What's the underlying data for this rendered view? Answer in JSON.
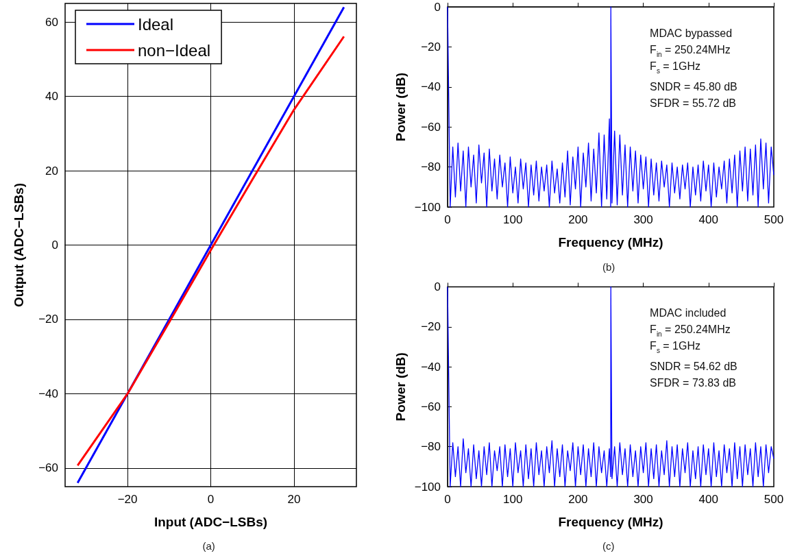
{
  "chart_data": [
    {
      "type": "line",
      "title": "(a)",
      "xlabel": "Input (ADC−LSBs)",
      "ylabel": "Output (ADC−LSBs)",
      "xlim": [
        -35,
        35
      ],
      "ylim": [
        -65,
        65
      ],
      "xticks": [
        -20,
        0,
        20
      ],
      "yticks": [
        -60,
        -40,
        -20,
        0,
        20,
        40,
        60
      ],
      "grid": true,
      "legend": "top left",
      "marker": "none",
      "line_style": "solid",
      "series": [
        {
          "name": "Ideal",
          "color": "#0000ff",
          "x": [
            -32,
            32
          ],
          "values": [
            -64,
            64
          ]
        },
        {
          "name": "non−Ideal",
          "color": "#ff0000",
          "x": [
            -32,
            -20,
            -10,
            0,
            10,
            20,
            32
          ],
          "values": [
            -59.3,
            -40,
            -20.8,
            -1.4,
            17.6,
            36.4,
            56.1
          ]
        }
      ]
    },
    {
      "type": "line",
      "title": "(b)",
      "xlabel": "Frequency (MHz)",
      "ylabel": "Power (dB)",
      "xlim": [
        0,
        500
      ],
      "ylim": [
        -100,
        0
      ],
      "xticks": [
        0,
        100,
        200,
        300,
        400,
        500
      ],
      "yticks": [
        -100,
        -80,
        -60,
        -40,
        -20,
        0
      ],
      "grid": false,
      "legend": false,
      "marker": "none",
      "line_style": "solid",
      "annotations": [
        "MDAC bypassed",
        "F$_{in}$ = 250.24MHz",
        "F$_{s}$ = 1GHz",
        "SNDR = 45.80 dB",
        "SFDR = 55.72 dB"
      ],
      "series": [
        {
          "color": "#0000ff",
          "x": [
            0,
            4,
            8,
            12,
            16,
            20,
            24,
            28,
            32,
            36,
            40,
            44,
            48,
            52,
            56,
            60,
            64,
            68,
            72,
            76,
            80,
            84,
            88,
            92,
            96,
            100,
            104,
            108,
            112,
            116,
            120,
            124,
            128,
            132,
            136,
            140,
            144,
            148,
            152,
            156,
            160,
            164,
            168,
            172,
            176,
            180,
            184,
            188,
            192,
            196,
            200,
            204,
            208,
            212,
            216,
            220,
            224,
            228,
            232,
            236,
            240,
            244,
            248,
            250,
            250.24,
            252,
            256,
            260,
            264,
            268,
            272,
            276,
            280,
            284,
            288,
            292,
            296,
            300,
            304,
            308,
            312,
            316,
            320,
            324,
            328,
            332,
            336,
            340,
            344,
            348,
            352,
            356,
            360,
            364,
            368,
            372,
            376,
            380,
            384,
            388,
            392,
            396,
            400,
            404,
            408,
            412,
            416,
            420,
            424,
            428,
            432,
            436,
            440,
            444,
            448,
            452,
            456,
            460,
            464,
            468,
            472,
            476,
            480,
            484,
            488,
            492,
            496,
            500
          ],
          "values": [
            0,
            -100,
            -70,
            -95,
            -68,
            -92,
            -72,
            -100,
            -70,
            -90,
            -74,
            -98,
            -69,
            -88,
            -73,
            -100,
            -71,
            -92,
            -76,
            -96,
            -74,
            -90,
            -78,
            -100,
            -75,
            -93,
            -80,
            -98,
            -76,
            -91,
            -78,
            -100,
            -79,
            -94,
            -77,
            -97,
            -80,
            -92,
            -79,
            -100,
            -77,
            -93,
            -81,
            -98,
            -78,
            -95,
            -72,
            -99,
            -75,
            -91,
            -70,
            -100,
            -73,
            -90,
            -68,
            -97,
            -71,
            -93,
            -63,
            -100,
            -64,
            -96,
            -56,
            -100,
            0,
            -98,
            -62,
            -99,
            -64,
            -94,
            -69,
            -100,
            -70,
            -92,
            -72,
            -98,
            -74,
            -91,
            -75,
            -100,
            -76,
            -94,
            -78,
            -97,
            -77,
            -90,
            -79,
            -100,
            -78,
            -93,
            -80,
            -96,
            -79,
            -91,
            -78,
            -100,
            -80,
            -94,
            -79,
            -97,
            -77,
            -92,
            -79,
            -100,
            -78,
            -95,
            -80,
            -91,
            -77,
            -98,
            -76,
            -93,
            -74,
            -100,
            -72,
            -92,
            -70,
            -97,
            -71,
            -94,
            -69,
            -100,
            -66,
            -91,
            -68,
            -98,
            -70,
            -84
          ]
        }
      ]
    },
    {
      "type": "line",
      "title": "(c)",
      "xlabel": "Frequency (MHz)",
      "ylabel": "Power (dB)",
      "xlim": [
        0,
        500
      ],
      "ylim": [
        -100,
        0
      ],
      "xticks": [
        0,
        100,
        200,
        300,
        400,
        500
      ],
      "yticks": [
        -100,
        -80,
        -60,
        -40,
        -20,
        0
      ],
      "grid": false,
      "legend": false,
      "marker": "none",
      "line_style": "solid",
      "annotations": [
        "MDAC included",
        "F$_{in}$ = 250.24MHz",
        "F$_{s}$ = 1GHz",
        "SNDR = 54.62 dB",
        "SFDR = 73.83 dB"
      ],
      "series": [
        {
          "color": "#0000ff",
          "x": [
            0,
            4,
            8,
            12,
            16,
            20,
            24,
            28,
            32,
            36,
            40,
            44,
            48,
            52,
            56,
            60,
            64,
            68,
            72,
            76,
            80,
            84,
            88,
            92,
            96,
            100,
            104,
            108,
            112,
            116,
            120,
            124,
            128,
            132,
            136,
            140,
            144,
            148,
            152,
            156,
            160,
            164,
            168,
            172,
            176,
            180,
            184,
            188,
            192,
            196,
            200,
            204,
            208,
            212,
            216,
            220,
            224,
            228,
            232,
            236,
            240,
            244,
            248,
            250,
            250.24,
            252,
            256,
            260,
            264,
            268,
            272,
            276,
            280,
            284,
            288,
            292,
            296,
            300,
            304,
            308,
            312,
            316,
            320,
            324,
            328,
            332,
            336,
            340,
            344,
            348,
            352,
            356,
            360,
            364,
            368,
            372,
            376,
            380,
            384,
            388,
            392,
            396,
            400,
            404,
            408,
            412,
            416,
            420,
            424,
            428,
            432,
            436,
            440,
            444,
            448,
            452,
            456,
            460,
            464,
            468,
            472,
            476,
            480,
            484,
            488,
            492,
            496,
            500
          ],
          "values": [
            0,
            -100,
            -78,
            -95,
            -80,
            -100,
            -76,
            -93,
            -81,
            -100,
            -79,
            -96,
            -82,
            -100,
            -80,
            -94,
            -78,
            -100,
            -82,
            -92,
            -80,
            -100,
            -79,
            -95,
            -81,
            -100,
            -78,
            -93,
            -82,
            -100,
            -79,
            -96,
            -81,
            -100,
            -78,
            -94,
            -82,
            -100,
            -80,
            -93,
            -77,
            -100,
            -81,
            -95,
            -79,
            -100,
            -82,
            -92,
            -78,
            -100,
            -80,
            -94,
            -79,
            -100,
            -81,
            -95,
            -78,
            -100,
            -80,
            -93,
            -82,
            -100,
            -81,
            -95,
            0,
            -96,
            -80,
            -100,
            -78,
            -94,
            -81,
            -100,
            -79,
            -95,
            -82,
            -100,
            -80,
            -93,
            -78,
            -100,
            -81,
            -96,
            -79,
            -100,
            -82,
            -94,
            -77,
            -100,
            -80,
            -95,
            -79,
            -100,
            -81,
            -93,
            -78,
            -100,
            -82,
            -96,
            -80,
            -100,
            -79,
            -94,
            -81,
            -100,
            -78,
            -95,
            -82,
            -100,
            -79,
            -93,
            -81,
            -100,
            -78,
            -96,
            -80,
            -100,
            -79,
            -94,
            -81,
            -100,
            -78,
            -95,
            -80,
            -100,
            -79,
            -93,
            -80,
            -86
          ]
        }
      ]
    }
  ]
}
